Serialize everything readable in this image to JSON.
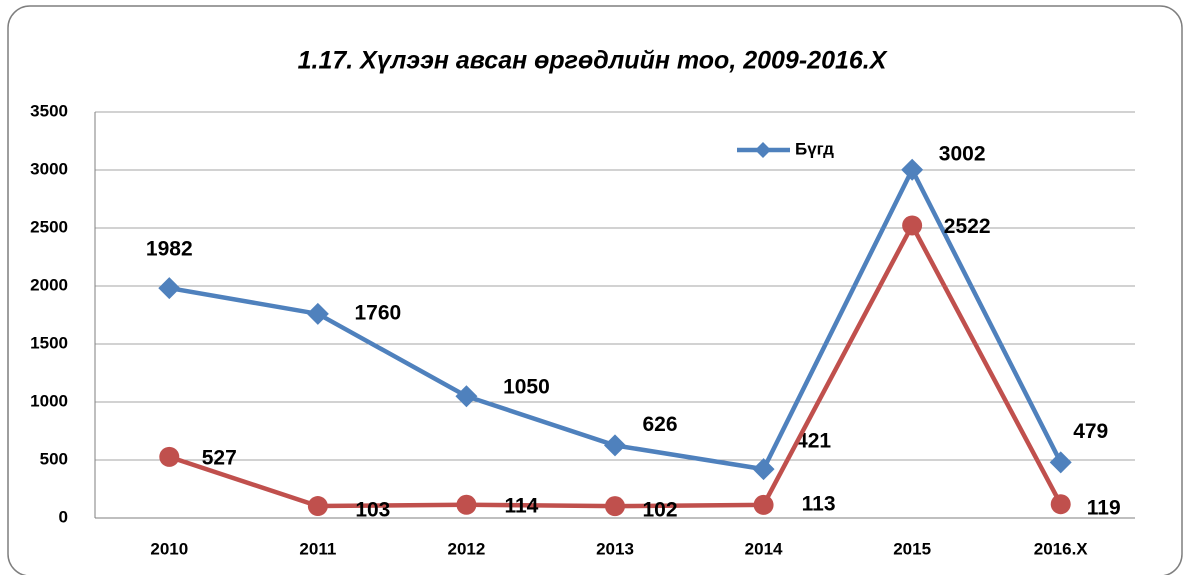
{
  "chart_data": {
    "type": "line",
    "title": "1.17. Хүлээн авсан өргөдлийн тоо, 2009-2016.X",
    "categories": [
      "2010",
      "2011",
      "2012",
      "2013",
      "2014",
      "2015",
      "2016.X"
    ],
    "series": [
      {
        "name": "Бүгд",
        "color": "#4f81bd",
        "values": [
          1982,
          1760,
          1050,
          626,
          421,
          3002,
          479
        ]
      },
      {
        "color": "#c0504d",
        "values": [
          527,
          103,
          114,
          102,
          113,
          2522,
          119
        ]
      }
    ],
    "ylim": [
      0,
      3500
    ],
    "yticks": [
      0,
      500,
      1000,
      1500,
      2000,
      2500,
      3000,
      3500
    ],
    "grid": true,
    "legend": "top"
  }
}
